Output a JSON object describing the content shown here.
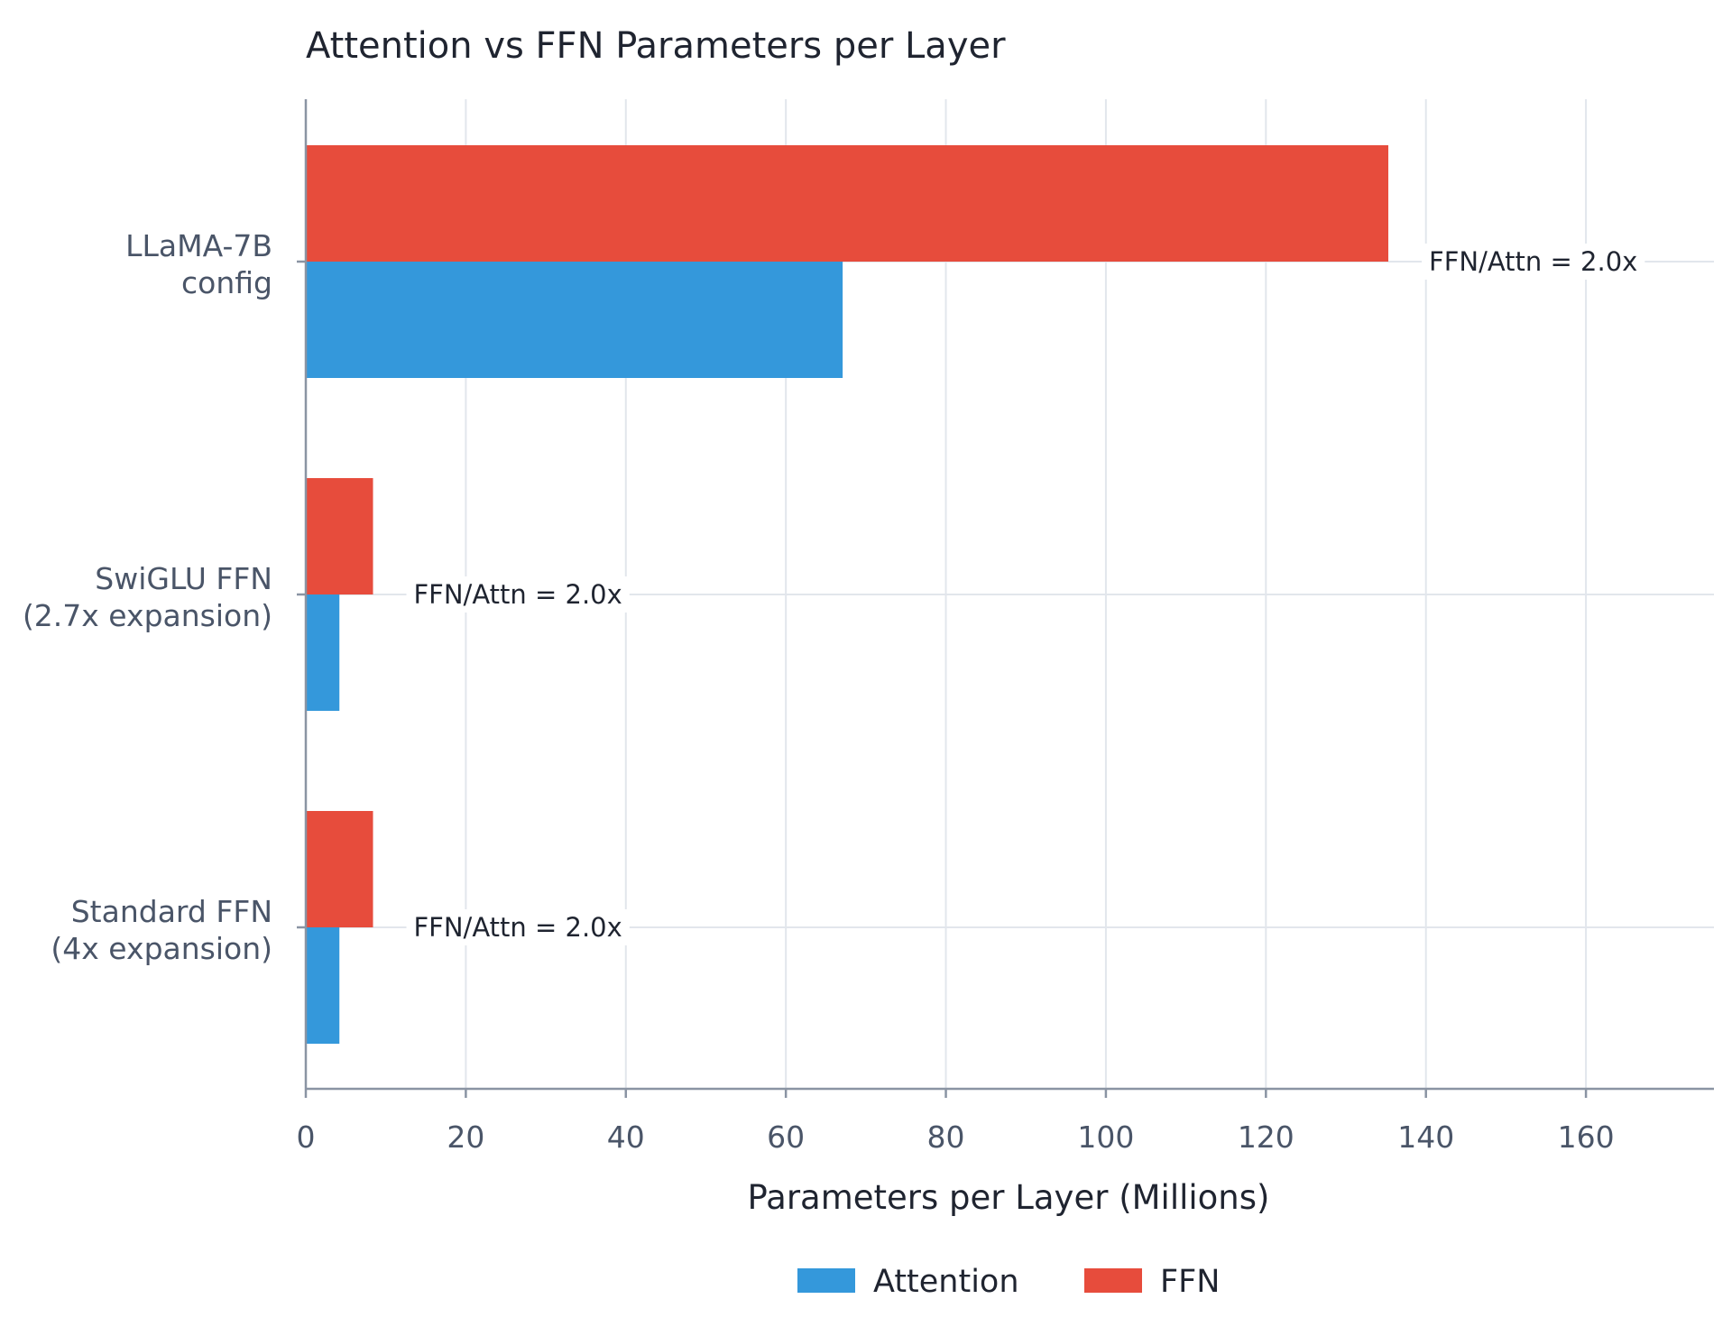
{
  "chart_data": {
    "type": "bar",
    "orientation": "horizontal",
    "title": "Attention vs FFN Parameters per Layer",
    "xlabel": "Parameters per Layer (Millions)",
    "ylabel": "",
    "xlim": [
      0,
      176
    ],
    "xticks": [
      0,
      20,
      40,
      60,
      80,
      100,
      120,
      140,
      160
    ],
    "grid": true,
    "legend_position": "bottom-center",
    "categories": [
      [
        "LLaMA-7B",
        "config"
      ],
      [
        "SwiGLU FFN",
        "(2.7x expansion)"
      ],
      [
        "Standard FFN",
        "(4x expansion)"
      ]
    ],
    "series": [
      {
        "name": "Attention",
        "color": "#3498db",
        "values": [
          67.1,
          4.2,
          4.2
        ]
      },
      {
        "name": "FFN",
        "color": "#e74c3c",
        "values": [
          135.3,
          8.4,
          8.4
        ]
      }
    ],
    "annotations": [
      {
        "category_index": 0,
        "text": "FFN/Attn = 2.0x"
      },
      {
        "category_index": 1,
        "text": "FFN/Attn = 2.0x"
      },
      {
        "category_index": 2,
        "text": "FFN/Attn = 2.0x"
      }
    ]
  }
}
